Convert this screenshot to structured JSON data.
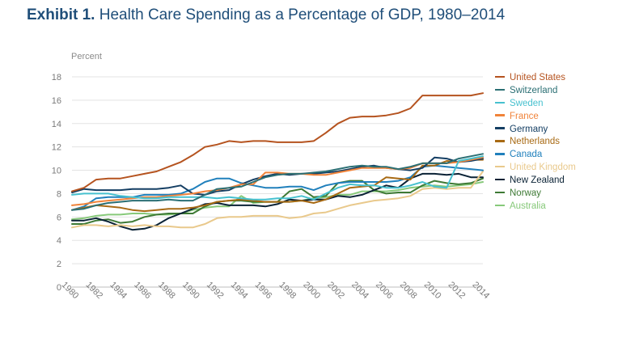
{
  "title": {
    "lead": "Exhibit 1.",
    "rest": "Health Care Spending as a Percentage of GDP, 1980–2014"
  },
  "chart_data": {
    "type": "line",
    "title": "Exhibit 1. Health Care Spending as a Percentage of GDP, 1980–2014",
    "ylabel": "Percent",
    "xlabel": "",
    "ylim": [
      0,
      18
    ],
    "yticks": [
      0,
      2,
      4,
      6,
      8,
      10,
      12,
      14,
      16,
      18
    ],
    "xticks": [
      "1980",
      "1982",
      "1984",
      "1986",
      "1988",
      "1990",
      "1992",
      "1994",
      "1996",
      "1998",
      "2000",
      "2002",
      "2004",
      "2006",
      "2008",
      "2010",
      "2012",
      "2014"
    ],
    "x": [
      1980,
      1981,
      1982,
      1983,
      1984,
      1985,
      1986,
      1987,
      1988,
      1989,
      1990,
      1991,
      1992,
      1993,
      1994,
      1995,
      1996,
      1997,
      1998,
      1999,
      2000,
      2001,
      2002,
      2003,
      2004,
      2005,
      2006,
      2007,
      2008,
      2009,
      2010,
      2011,
      2012,
      2013,
      2014
    ],
    "grid": "horizontal",
    "legend_position": "right",
    "series": [
      {
        "name": "United States",
        "color": "#b5531f",
        "values": [
          8.2,
          8.5,
          9.2,
          9.3,
          9.3,
          9.5,
          9.7,
          9.9,
          10.3,
          10.7,
          11.3,
          12.0,
          12.2,
          12.5,
          12.4,
          12.5,
          12.5,
          12.4,
          12.4,
          12.4,
          12.5,
          13.2,
          14.0,
          14.5,
          14.6,
          14.6,
          14.7,
          14.9,
          15.3,
          16.4,
          16.4,
          16.4,
          16.4,
          16.4,
          16.6
        ]
      },
      {
        "name": "Switzerland",
        "color": "#2b6f74",
        "values": [
          6.6,
          6.7,
          7.0,
          7.2,
          7.3,
          7.4,
          7.4,
          7.4,
          7.5,
          7.4,
          7.4,
          7.9,
          8.4,
          8.5,
          8.6,
          9.0,
          9.4,
          9.6,
          9.7,
          9.7,
          9.8,
          9.9,
          10.1,
          10.3,
          10.4,
          10.3,
          10.3,
          10.1,
          10.3,
          10.6,
          10.6,
          10.6,
          11.0,
          11.2,
          11.4
        ]
      },
      {
        "name": "Sweden",
        "color": "#47c1cf",
        "values": [
          7.9,
          8.0,
          8.0,
          8.0,
          7.8,
          7.7,
          7.6,
          7.6,
          7.7,
          7.7,
          7.7,
          7.7,
          7.6,
          7.7,
          7.6,
          7.5,
          7.5,
          7.6,
          7.6,
          7.8,
          7.5,
          8.0,
          8.5,
          8.8,
          8.7,
          8.7,
          8.5,
          8.5,
          8.7,
          9.0,
          8.6,
          8.5,
          10.8,
          11.0,
          11.2
        ]
      },
      {
        "name": "France",
        "color": "#f0833a",
        "values": [
          7.0,
          7.1,
          7.3,
          7.4,
          7.5,
          7.6,
          7.7,
          7.7,
          7.8,
          7.9,
          8.0,
          8.2,
          8.3,
          8.5,
          8.8,
          8.8,
          9.8,
          9.8,
          9.7,
          9.7,
          9.6,
          9.6,
          9.8,
          10.0,
          10.2,
          10.2,
          10.2,
          10.1,
          10.2,
          10.6,
          10.6,
          10.6,
          10.7,
          10.9,
          11.1
        ]
      },
      {
        "name": "Germany",
        "color": "#143e63",
        "values": [
          8.1,
          8.4,
          8.3,
          8.3,
          8.3,
          8.4,
          8.4,
          8.4,
          8.5,
          8.7,
          8.0,
          7.9,
          8.2,
          8.3,
          8.8,
          9.2,
          9.5,
          9.7,
          9.6,
          9.7,
          9.7,
          9.8,
          9.9,
          10.1,
          10.3,
          10.4,
          10.2,
          10.1,
          10.0,
          10.2,
          11.1,
          11.0,
          10.7,
          10.8,
          11.0
        ]
      },
      {
        "name": "Netherlands",
        "color": "#a86a14",
        "values": [
          6.6,
          6.8,
          7.0,
          6.9,
          6.8,
          6.6,
          6.5,
          6.6,
          6.7,
          6.7,
          6.8,
          7.0,
          7.3,
          7.4,
          7.5,
          7.4,
          7.3,
          7.3,
          7.3,
          7.4,
          7.2,
          7.5,
          8.0,
          8.5,
          8.6,
          8.7,
          9.4,
          9.3,
          9.2,
          10.4,
          10.4,
          10.8,
          10.7,
          10.9,
          10.9
        ]
      },
      {
        "name": "Canada",
        "color": "#2080bc",
        "values": [
          6.6,
          6.9,
          7.6,
          7.7,
          7.7,
          7.7,
          7.9,
          7.9,
          7.9,
          8.0,
          8.4,
          9.0,
          9.3,
          9.3,
          8.9,
          8.7,
          8.5,
          8.5,
          8.6,
          8.6,
          8.3,
          8.7,
          8.9,
          9.0,
          9.0,
          9.0,
          9.0,
          9.1,
          9.4,
          10.3,
          10.4,
          10.3,
          10.2,
          10.1,
          10.0
        ]
      },
      {
        "name": "United Kingdom",
        "color": "#e9c98c",
        "values": [
          5.1,
          5.3,
          5.3,
          5.2,
          5.3,
          5.2,
          5.3,
          5.2,
          5.2,
          5.1,
          5.1,
          5.4,
          5.9,
          6.0,
          6.0,
          6.1,
          6.1,
          6.1,
          5.9,
          6.0,
          6.3,
          6.4,
          6.7,
          7.0,
          7.2,
          7.4,
          7.5,
          7.6,
          7.8,
          8.4,
          8.5,
          8.4,
          8.5,
          8.5,
          9.9
        ]
      },
      {
        "name": "New Zealand",
        "color": "#0a2235",
        "values": [
          5.7,
          5.7,
          5.9,
          5.6,
          5.2,
          4.9,
          5.0,
          5.3,
          5.9,
          6.3,
          6.7,
          7.1,
          7.2,
          7.0,
          7.0,
          7.0,
          6.9,
          7.1,
          7.5,
          7.4,
          7.5,
          7.5,
          7.8,
          7.7,
          7.9,
          8.3,
          8.7,
          8.5,
          9.3,
          9.7,
          9.7,
          9.6,
          9.7,
          9.4,
          9.4
        ]
      },
      {
        "name": "Norway",
        "color": "#3e7a35",
        "values": [
          5.4,
          5.4,
          5.7,
          5.8,
          5.5,
          5.6,
          6.0,
          6.2,
          6.3,
          6.3,
          6.3,
          6.9,
          7.3,
          7.4,
          7.4,
          7.3,
          7.3,
          7.3,
          8.2,
          8.4,
          7.7,
          7.8,
          8.9,
          9.1,
          9.1,
          8.3,
          8.0,
          8.1,
          8.1,
          8.7,
          9.1,
          8.9,
          8.8,
          8.9,
          9.3
        ]
      },
      {
        "name": "Australia",
        "color": "#87c97a",
        "values": [
          5.8,
          5.9,
          6.1,
          6.2,
          6.2,
          6.3,
          6.3,
          6.2,
          6.2,
          6.3,
          6.6,
          6.8,
          6.9,
          6.9,
          7.8,
          7.2,
          7.3,
          7.3,
          7.3,
          7.4,
          7.6,
          7.7,
          7.9,
          7.9,
          8.2,
          8.2,
          8.2,
          8.3,
          8.5,
          8.6,
          8.7,
          8.6,
          8.7,
          8.8,
          9.0
        ]
      }
    ]
  }
}
